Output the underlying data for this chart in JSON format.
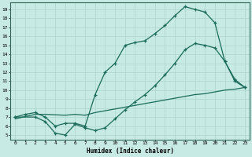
{
  "xlabel": "Humidex (Indice chaleur)",
  "bg_color": "#c8eae4",
  "line_color": "#1a6b5a",
  "grid_color": "#b0d8d0",
  "xlim": [
    -0.5,
    23.5
  ],
  "ylim": [
    4.5,
    19.8
  ],
  "xticks": [
    0,
    1,
    2,
    3,
    4,
    5,
    6,
    7,
    8,
    9,
    10,
    11,
    12,
    13,
    14,
    15,
    16,
    17,
    18,
    19,
    20,
    21,
    22,
    23
  ],
  "yticks": [
    5,
    6,
    7,
    8,
    9,
    10,
    11,
    12,
    13,
    14,
    15,
    16,
    17,
    18,
    19
  ],
  "line1_x": [
    0,
    1,
    2,
    3,
    4,
    5,
    6,
    7,
    8,
    9,
    10,
    11,
    12,
    13,
    14,
    15,
    16,
    17,
    18,
    19,
    20,
    21,
    22,
    23
  ],
  "line1_y": [
    7.0,
    7.3,
    7.5,
    7.0,
    6.0,
    6.3,
    6.3,
    6.0,
    9.5,
    12.0,
    13.0,
    15.0,
    15.3,
    15.5,
    16.3,
    17.2,
    18.3,
    19.3,
    19.0,
    18.7,
    17.5,
    13.2,
    11.0,
    10.3
  ],
  "line2_x": [
    0,
    2,
    3,
    4,
    5,
    6,
    7,
    8,
    9,
    10,
    11,
    12,
    13,
    14,
    15,
    16,
    17,
    18,
    19,
    20,
    21,
    22,
    23
  ],
  "line2_y": [
    7.0,
    7.0,
    6.5,
    5.2,
    5.0,
    6.2,
    5.8,
    5.5,
    5.8,
    6.8,
    7.8,
    8.7,
    9.5,
    10.5,
    11.7,
    13.0,
    14.5,
    15.2,
    15.0,
    14.7,
    13.2,
    11.2,
    10.3
  ],
  "line3_x": [
    0,
    2,
    3,
    5,
    6,
    7,
    8,
    9,
    10,
    11,
    12,
    13,
    14,
    15,
    16,
    17,
    18,
    19,
    20,
    21,
    22,
    23
  ],
  "line3_y": [
    6.8,
    7.3,
    7.3,
    7.2,
    7.3,
    7.2,
    7.5,
    7.7,
    7.9,
    8.1,
    8.3,
    8.5,
    8.7,
    8.9,
    9.1,
    9.3,
    9.5,
    9.6,
    9.8,
    10.0,
    10.1,
    10.3
  ]
}
